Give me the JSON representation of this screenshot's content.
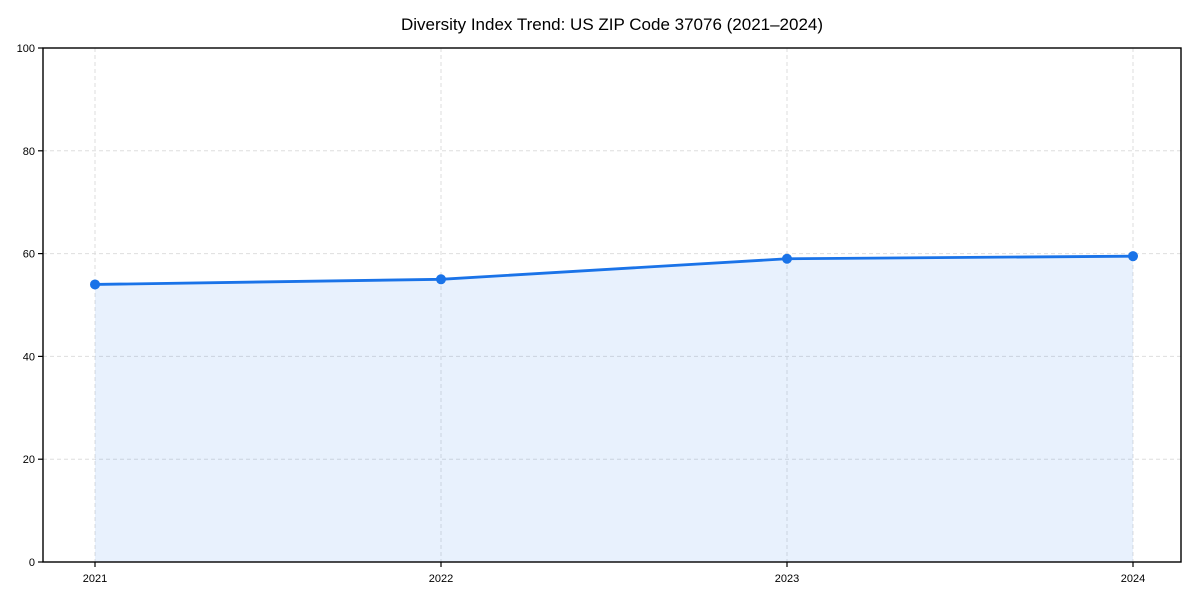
{
  "chart_data": {
    "type": "area",
    "title": "Diversity Index Trend: US ZIP Code 37076 (2021–2024)",
    "categories": [
      "2021",
      "2022",
      "2023",
      "2024"
    ],
    "values": [
      54,
      55,
      59,
      59.5
    ],
    "xlabel": "",
    "ylabel": "",
    "ylim": [
      0,
      100
    ],
    "yticks": [
      0,
      20,
      40,
      60,
      80,
      100
    ],
    "grid": true,
    "grid_style": "dashed",
    "legend": "none",
    "marker": "circle",
    "area_fill": true,
    "colors": {
      "line": "#1a73e8",
      "fill": "rgba(26,115,232,0.10)",
      "grid": "#dedede",
      "axis": "#000000",
      "text": "#000000",
      "background": "#ffffff"
    }
  }
}
